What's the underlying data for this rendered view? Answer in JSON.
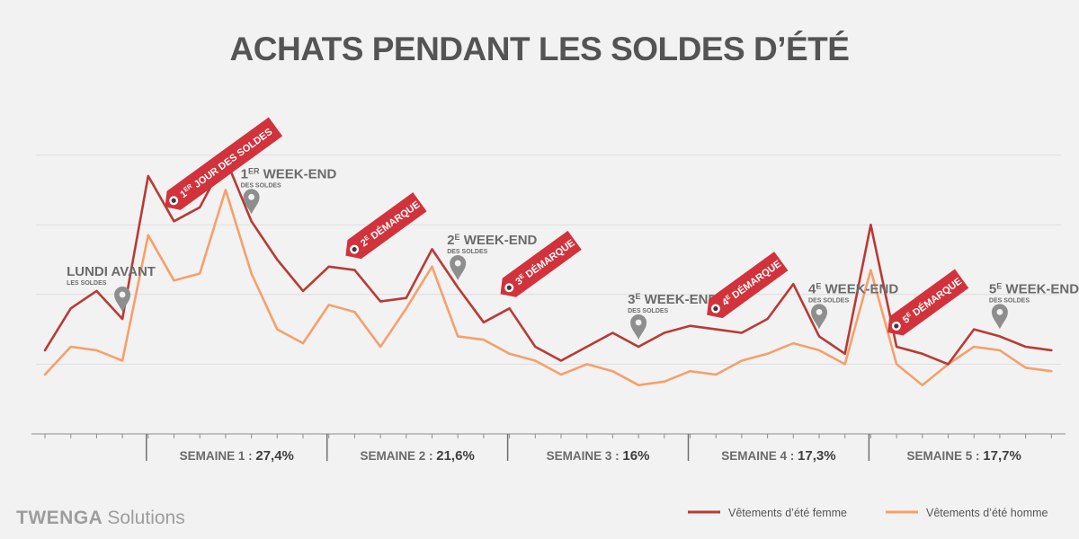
{
  "chart_data": {
    "type": "line",
    "title": "ACHATS PENDANT LES SOLDES D’ÉTÉ",
    "x": [
      1,
      2,
      3,
      4,
      5,
      6,
      7,
      8,
      9,
      10,
      11,
      12,
      13,
      14,
      15,
      16,
      17,
      18,
      19,
      20,
      21,
      22,
      23,
      24,
      25,
      26,
      27,
      28,
      29,
      30,
      31,
      32,
      33,
      34,
      35,
      36,
      37,
      38,
      39,
      40
    ],
    "series": [
      {
        "name": "Vêtements d’été femme",
        "color": "#b93a35",
        "values": [
          24,
          36,
          41,
          33,
          74,
          61,
          65,
          79,
          61,
          50,
          41,
          48,
          47,
          38,
          39,
          53,
          42,
          32,
          36,
          25,
          21,
          25,
          29,
          25,
          29,
          31,
          30,
          29,
          33,
          43,
          28,
          23,
          60,
          25,
          23,
          20,
          30,
          28,
          25,
          24
        ]
      },
      {
        "name": "Vêtements d’été homme",
        "color": "#f5a06b",
        "values": [
          17,
          25,
          24,
          21,
          57,
          44,
          46,
          70,
          46,
          30,
          26,
          37,
          35,
          25,
          36,
          48,
          28,
          27,
          23,
          21,
          17,
          20,
          18,
          14,
          15,
          18,
          17,
          21,
          23,
          26,
          24,
          20,
          47,
          20,
          14,
          20,
          25,
          24,
          19,
          18
        ]
      }
    ],
    "ylim": [
      0,
      100
    ],
    "grid": true,
    "weeks": [
      {
        "label": "SEMAINE 1 :",
        "value": "27,4%"
      },
      {
        "label": "SEMAINE 2 :",
        "value": "21,6%"
      },
      {
        "label": "SEMAINE 3 :",
        "value": "16%"
      },
      {
        "label": "SEMAINE 4 :",
        "value": "17,3%"
      },
      {
        "label": "SEMAINE 5 :",
        "value": "17,7%"
      }
    ],
    "tags": [
      {
        "num": "1",
        "sup": "ER",
        "text": "JOUR DES SOLDES",
        "at": 5
      },
      {
        "num": "2",
        "sup": "E",
        "text": "DÉMARQUE",
        "at": 12
      },
      {
        "num": "3",
        "sup": "E",
        "text": "DÉMARQUE",
        "at": 18
      },
      {
        "num": "4",
        "sup": "E",
        "text": "DÉMARQUE",
        "at": 26
      },
      {
        "num": "5",
        "sup": "E",
        "text": "DÉMARQUE",
        "at": 33
      }
    ],
    "markers": [
      {
        "main": "LUNDI AVANT",
        "sup": "",
        "rest": "",
        "sub": "LES SOLDES",
        "at": 3
      },
      {
        "main": "1",
        "sup": "ER",
        "rest": "WEEK-END",
        "sub": "DES SOLDES",
        "at": 8
      },
      {
        "main": "2",
        "sup": "E",
        "rest": "WEEK-END",
        "sub": "DES SOLDES",
        "at": 16
      },
      {
        "main": "3",
        "sup": "E",
        "rest": "WEEK-END",
        "sub": "DES SOLDES",
        "at": 23
      },
      {
        "main": "4",
        "sup": "E",
        "rest": "WEEK-END",
        "sub": "DES SOLDES",
        "at": 30
      },
      {
        "main": "5",
        "sup": "E",
        "rest": "WEEK-END",
        "sub": "DES SOLDES",
        "at": 37
      }
    ],
    "legend_position": "bottom-right"
  },
  "brand": {
    "name": "TWENGA",
    "product": "Solutions"
  }
}
